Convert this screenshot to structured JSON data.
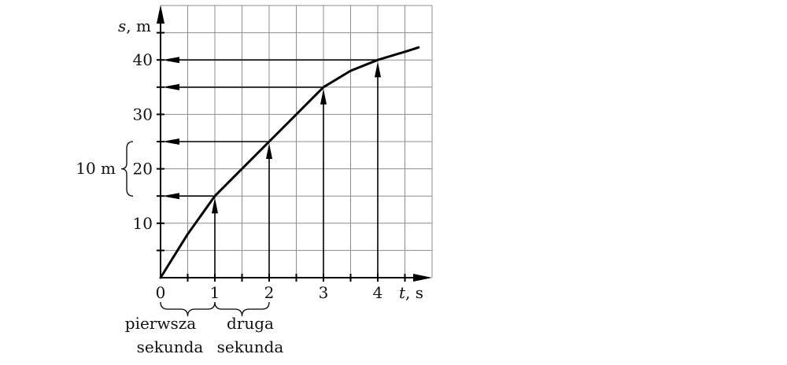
{
  "chart_data": {
    "type": "line",
    "title": "",
    "ylabel": {
      "var": "s",
      "unit": ", m"
    },
    "xlabel": {
      "var": "t",
      "unit": ", s"
    },
    "xlim": [
      0,
      5
    ],
    "ylim": [
      0,
      50
    ],
    "grid": true,
    "x_ticks": [
      "0",
      "1",
      "2",
      "3",
      "4"
    ],
    "y_ticks": [
      "10",
      "20",
      "30",
      "40"
    ],
    "series": [
      {
        "x": [
          0,
          0.5,
          1,
          1.5,
          2,
          2.5,
          3,
          3.5,
          4,
          4.5,
          4.75
        ],
        "y": [
          0,
          8,
          15,
          20,
          25,
          30,
          35,
          38,
          40,
          41.5,
          42.3
        ]
      }
    ],
    "highlighted_points": [
      {
        "x": 1,
        "y": 15
      },
      {
        "x": 2,
        "y": 25
      },
      {
        "x": 3,
        "y": 35
      },
      {
        "x": 4,
        "y": 40
      }
    ],
    "annotations": {
      "brace_label": "10 m",
      "first_second": [
        "pierwsza",
        "sekunda"
      ],
      "second_second": [
        "druga",
        "sekunda"
      ]
    }
  }
}
